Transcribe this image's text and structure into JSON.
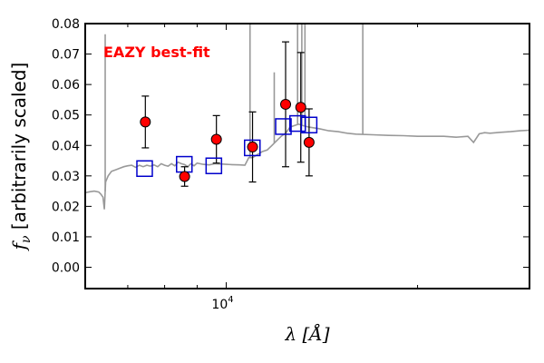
{
  "chart_data": {
    "type": "scatter",
    "annotation": {
      "text": "EAZY best-fit",
      "color": "#ff0000"
    },
    "xlabel": "λ [Å]",
    "ylabel": "f_ν [arbitrarily scaled]",
    "xscale": "log",
    "xlim": [
      6000,
      30000
    ],
    "ylim": [
      -0.007,
      0.08
    ],
    "xticks": [
      {
        "value": 10000,
        "label": "10^4"
      }
    ],
    "yticks": [
      0.0,
      0.01,
      0.02,
      0.03,
      0.04,
      0.05,
      0.06,
      0.07,
      0.08
    ],
    "ytick_labels": [
      "0.00",
      "0.01",
      "0.02",
      "0.03",
      "0.04",
      "0.05",
      "0.06",
      "0.07",
      "0.08"
    ],
    "x_minor_ticks": [
      7000,
      8000,
      9000,
      20000
    ],
    "grid": false,
    "series": [
      {
        "kind": "observed",
        "marker": "circle",
        "color": "#ff0000",
        "points": [
          {
            "x": 7460,
            "y": 0.0477,
            "err": 0.0085
          },
          {
            "x": 8600,
            "y": 0.0298,
            "err": 0.0032
          },
          {
            "x": 9650,
            "y": 0.042,
            "err": 0.0078
          },
          {
            "x": 11000,
            "y": 0.0395,
            "err": 0.0115
          },
          {
            "x": 12400,
            "y": 0.0535,
            "err": 0.0205
          },
          {
            "x": 13100,
            "y": 0.0525,
            "err": 0.018
          },
          {
            "x": 13500,
            "y": 0.041,
            "err": 0.011
          }
        ]
      },
      {
        "kind": "model photometry",
        "marker": "square",
        "color": "#0000cc",
        "points": [
          {
            "x": 7440,
            "y": 0.0324
          },
          {
            "x": 8590,
            "y": 0.0338
          },
          {
            "x": 9560,
            "y": 0.0333
          },
          {
            "x": 10990,
            "y": 0.0392
          },
          {
            "x": 12300,
            "y": 0.0462
          },
          {
            "x": 12950,
            "y": 0.0472
          },
          {
            "x": 13500,
            "y": 0.0467
          }
        ]
      },
      {
        "kind": "template spectrum",
        "line": true,
        "color": "#999999",
        "points": [
          [
            6000,
            0.0245
          ],
          [
            6100,
            0.0248
          ],
          [
            6200,
            0.025
          ],
          [
            6300,
            0.0247
          ],
          [
            6350,
            0.024
          ],
          [
            6400,
            0.023
          ],
          [
            6430,
            0.019
          ],
          [
            6460,
            0.028
          ],
          [
            6520,
            0.03
          ],
          [
            6600,
            0.0315
          ],
          [
            6700,
            0.032
          ],
          [
            6800,
            0.0325
          ],
          [
            6900,
            0.033
          ],
          [
            7000,
            0.0333
          ],
          [
            7100,
            0.0335
          ],
          [
            7200,
            0.0328
          ],
          [
            7300,
            0.0335
          ],
          [
            7400,
            0.033
          ],
          [
            7500,
            0.0335
          ],
          [
            7600,
            0.0332
          ],
          [
            7700,
            0.0336
          ],
          [
            7800,
            0.033
          ],
          [
            7900,
            0.034
          ],
          [
            8000,
            0.0335
          ],
          [
            8100,
            0.0332
          ],
          [
            8200,
            0.034
          ],
          [
            8300,
            0.0333
          ],
          [
            8400,
            0.0345
          ],
          [
            8500,
            0.034
          ],
          [
            8600,
            0.0337
          ],
          [
            8700,
            0.033
          ],
          [
            8800,
            0.034
          ],
          [
            8900,
            0.0333
          ],
          [
            9000,
            0.0342
          ],
          [
            9200,
            0.0338
          ],
          [
            9400,
            0.0336
          ],
          [
            9600,
            0.034
          ],
          [
            9800,
            0.0339
          ],
          [
            10000,
            0.0338
          ],
          [
            10200,
            0.0337
          ],
          [
            10500,
            0.0336
          ],
          [
            10700,
            0.0335
          ],
          [
            10850,
            0.036
          ],
          [
            11000,
            0.036
          ],
          [
            11200,
            0.037
          ],
          [
            11400,
            0.038
          ],
          [
            11600,
            0.0385
          ],
          [
            11800,
            0.04
          ],
          [
            12000,
            0.0415
          ],
          [
            12200,
            0.043
          ],
          [
            12400,
            0.044
          ],
          [
            12600,
            0.046
          ],
          [
            12800,
            0.0465
          ],
          [
            13000,
            0.047
          ],
          [
            13200,
            0.0465
          ],
          [
            13500,
            0.046
          ],
          [
            14000,
            0.0455
          ],
          [
            14500,
            0.0448
          ],
          [
            15000,
            0.0445
          ],
          [
            15500,
            0.044
          ],
          [
            16000,
            0.0437
          ],
          [
            17000,
            0.0435
          ],
          [
            18000,
            0.0433
          ],
          [
            19000,
            0.0432
          ],
          [
            20000,
            0.043
          ],
          [
            21000,
            0.043
          ],
          [
            22000,
            0.043
          ],
          [
            23000,
            0.0427
          ],
          [
            24000,
            0.043
          ],
          [
            24500,
            0.041
          ],
          [
            25000,
            0.0438
          ],
          [
            25500,
            0.0442
          ],
          [
            26000,
            0.044
          ],
          [
            27000,
            0.0443
          ],
          [
            28000,
            0.0445
          ],
          [
            29000,
            0.0448
          ],
          [
            30000,
            0.045
          ]
        ],
        "emission_lines": [
          {
            "x": 6450,
            "y": 0.0765
          },
          {
            "x": 10900,
            "y": 0.08
          },
          {
            "x": 11900,
            "y": 0.064
          },
          {
            "x": 12950,
            "y": 0.08
          },
          {
            "x": 13150,
            "y": 0.08
          },
          {
            "x": 13300,
            "y": 0.08
          },
          {
            "x": 16400,
            "y": 0.08
          }
        ]
      }
    ]
  }
}
